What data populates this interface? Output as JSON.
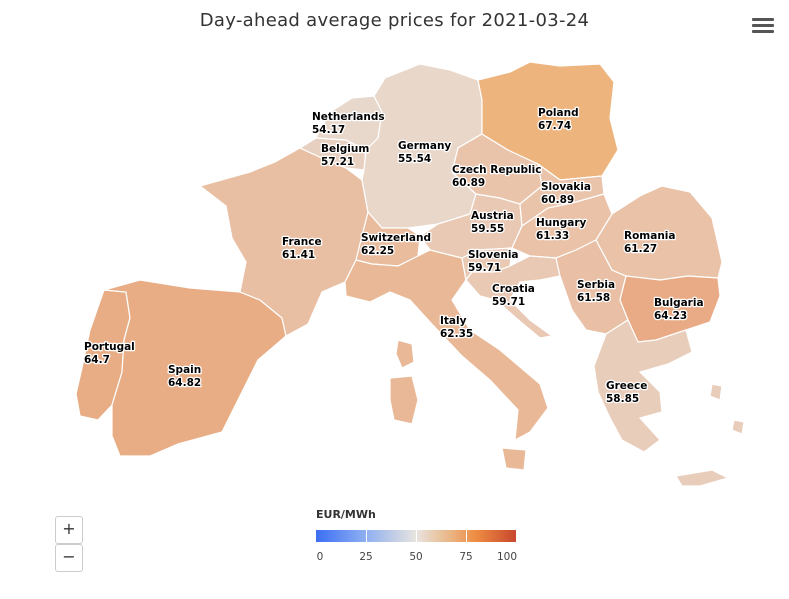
{
  "title": "Day-ahead average prices for 2021-03-24",
  "menu_icon": "hamburger-menu-icon",
  "zoom": {
    "in_label": "+",
    "out_label": "−"
  },
  "legend": {
    "title": "EUR/MWh",
    "min": 0,
    "max": 100,
    "ticks": [
      "0",
      "25",
      "50",
      "75",
      "100"
    ],
    "colors": {
      "low": "#3b6ef5",
      "mid": "#e8e4e0",
      "high": "#c8472e"
    }
  },
  "countries": [
    {
      "id": "portugal",
      "name": "Portugal",
      "price": "64.7",
      "color": "#e8ad85"
    },
    {
      "id": "spain",
      "name": "Spain",
      "price": "64.82",
      "color": "#e8ad85"
    },
    {
      "id": "france",
      "name": "France",
      "price": "61.41",
      "color": "#e9bfa3"
    },
    {
      "id": "belgium",
      "name": "Belgium",
      "price": "57.21",
      "color": "#e8d0c0"
    },
    {
      "id": "netherlands",
      "name": "Netherlands",
      "price": "54.17",
      "color": "#e8d8cc"
    },
    {
      "id": "germany",
      "name": "Germany",
      "price": "55.54",
      "color": "#e9d7ca"
    },
    {
      "id": "switzerland",
      "name": "Switzerland",
      "price": "62.25",
      "color": "#e9bc9e"
    },
    {
      "id": "italy",
      "name": "Italy",
      "price": "62.35",
      "color": "#e9b997"
    },
    {
      "id": "austria",
      "name": "Austria",
      "price": "59.55",
      "color": "#e9c9b4"
    },
    {
      "id": "czech",
      "name": "Czech Republic",
      "price": "60.89",
      "color": "#e9c4ab"
    },
    {
      "id": "poland",
      "name": "Poland",
      "price": "67.74",
      "color": "#eeb47e"
    },
    {
      "id": "slovakia",
      "name": "Slovakia",
      "price": "60.89",
      "color": "#e9c4ab"
    },
    {
      "id": "hungary",
      "name": "Hungary",
      "price": "61.33",
      "color": "#e9c2a8"
    },
    {
      "id": "slovenia",
      "name": "Slovenia",
      "price": "59.71",
      "color": "#e9c9b4"
    },
    {
      "id": "croatia",
      "name": "Croatia",
      "price": "59.71",
      "color": "#e9c9b4"
    },
    {
      "id": "serbia",
      "name": "Serbia",
      "price": "61.58",
      "color": "#e9c0a5"
    },
    {
      "id": "romania",
      "name": "Romania",
      "price": "61.27",
      "color": "#e9c2a8"
    },
    {
      "id": "bulgaria",
      "name": "Bulgaria",
      "price": "64.23",
      "color": "#e8ab86"
    },
    {
      "id": "greece",
      "name": "Greece",
      "price": "58.85",
      "color": "#e9cdbb"
    }
  ]
}
